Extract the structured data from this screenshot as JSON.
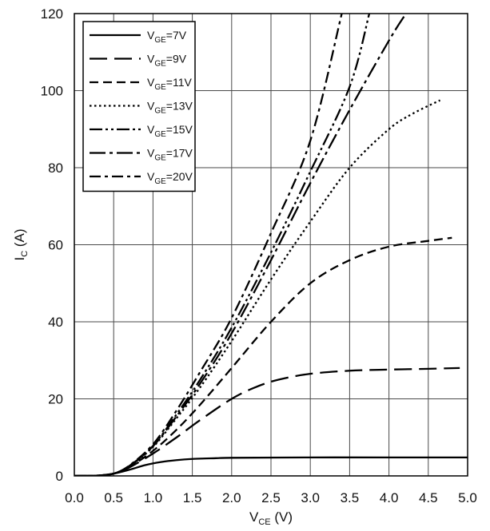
{
  "chart_data": {
    "type": "line",
    "title": "",
    "xlabel": {
      "main": "V",
      "sub": "CE",
      "unit": " (V)"
    },
    "ylabel": {
      "main": "I",
      "sub": "C",
      "unit": " (A)"
    },
    "xlim": [
      0,
      5
    ],
    "ylim": [
      0,
      120
    ],
    "xticks": [
      "0.0",
      "0.5",
      "1.0",
      "1.5",
      "2.0",
      "2.5",
      "3.0",
      "3.5",
      "4.0",
      "4.5",
      "5.0"
    ],
    "yticks": [
      "0",
      "20",
      "40",
      "60",
      "80",
      "100",
      "120"
    ],
    "grid": true,
    "legend_position": "top-left",
    "series": [
      {
        "name": "V_GE=7V",
        "label_main": "V",
        "label_sub": "GE",
        "label_val": "=7V",
        "dash": "solid",
        "x": [
          0,
          0.3,
          0.5,
          0.7,
          0.9,
          1.1,
          1.3,
          1.5,
          1.8,
          2.0,
          3.0,
          4.0,
          5.0
        ],
        "y": [
          0,
          0.1,
          0.6,
          1.6,
          2.8,
          3.6,
          4.1,
          4.4,
          4.6,
          4.7,
          4.8,
          4.8,
          4.8
        ]
      },
      {
        "name": "V_GE=9V",
        "label_main": "V",
        "label_sub": "GE",
        "label_val": "=9V",
        "dash": "longdash",
        "x": [
          0,
          0.3,
          0.5,
          0.7,
          1.0,
          1.3,
          1.6,
          2.0,
          2.3,
          2.6,
          3.0,
          3.5,
          4.0,
          4.5,
          4.9
        ],
        "y": [
          0,
          0.1,
          0.6,
          2.2,
          5.8,
          10,
          14.5,
          20,
          23,
          25,
          26.5,
          27.3,
          27.6,
          27.8,
          28
        ]
      },
      {
        "name": "V_GE=11V",
        "label_main": "V",
        "label_sub": "GE",
        "label_val": "=11V",
        "dash": "dash",
        "x": [
          0,
          0.3,
          0.5,
          0.7,
          1.0,
          1.3,
          1.6,
          2.0,
          2.5,
          3.0,
          3.5,
          4.0,
          4.5,
          4.8
        ],
        "y": [
          0,
          0.1,
          0.6,
          2.3,
          6.5,
          12,
          18.5,
          28,
          40,
          50,
          56,
          59.5,
          61,
          61.8
        ]
      },
      {
        "name": "V_GE=13V",
        "label_main": "V",
        "label_sub": "GE",
        "label_val": "=13V",
        "dash": "dot",
        "x": [
          0,
          0.3,
          0.5,
          0.7,
          1.0,
          1.3,
          1.6,
          2.0,
          2.5,
          3.0,
          3.5,
          4.0,
          4.3,
          4.65
        ],
        "y": [
          0,
          0.1,
          0.6,
          2.5,
          7.5,
          15,
          23,
          35,
          51,
          66,
          80,
          90,
          94,
          97.5
        ]
      },
      {
        "name": "V_GE=15V",
        "label_main": "V",
        "label_sub": "GE",
        "label_val": "=15V",
        "dash": "dashdotdot",
        "x": [
          0,
          0.3,
          0.5,
          0.7,
          1.0,
          1.3,
          1.6,
          2.0,
          2.5,
          3.0,
          3.5,
          3.75
        ],
        "y": [
          0,
          0.1,
          0.6,
          2.6,
          7.8,
          16,
          25,
          38.5,
          58,
          79,
          101,
          120
        ]
      },
      {
        "name": "V_GE=17V",
        "label_main": "V",
        "label_sub": "GE",
        "label_val": "=17V",
        "dash": "dashdot",
        "x": [
          0,
          0.3,
          0.5,
          0.7,
          1.0,
          1.3,
          1.6,
          2.0,
          2.5,
          3.0,
          3.5,
          4.0,
          4.2
        ],
        "y": [
          0,
          0.1,
          0.6,
          2.5,
          7.7,
          15.5,
          24,
          37,
          56,
          76,
          95,
          113,
          119.5
        ]
      },
      {
        "name": "V_GE=20V",
        "label_main": "V",
        "label_sub": "GE",
        "label_val": "=20V",
        "dash": "longdashdot",
        "x": [
          0,
          0.3,
          0.5,
          0.7,
          1.0,
          1.3,
          1.6,
          2.0,
          2.5,
          3.0,
          3.4
        ],
        "y": [
          0,
          0.1,
          0.6,
          2.7,
          8.2,
          17,
          27,
          41,
          63,
          87,
          120
        ]
      }
    ]
  }
}
